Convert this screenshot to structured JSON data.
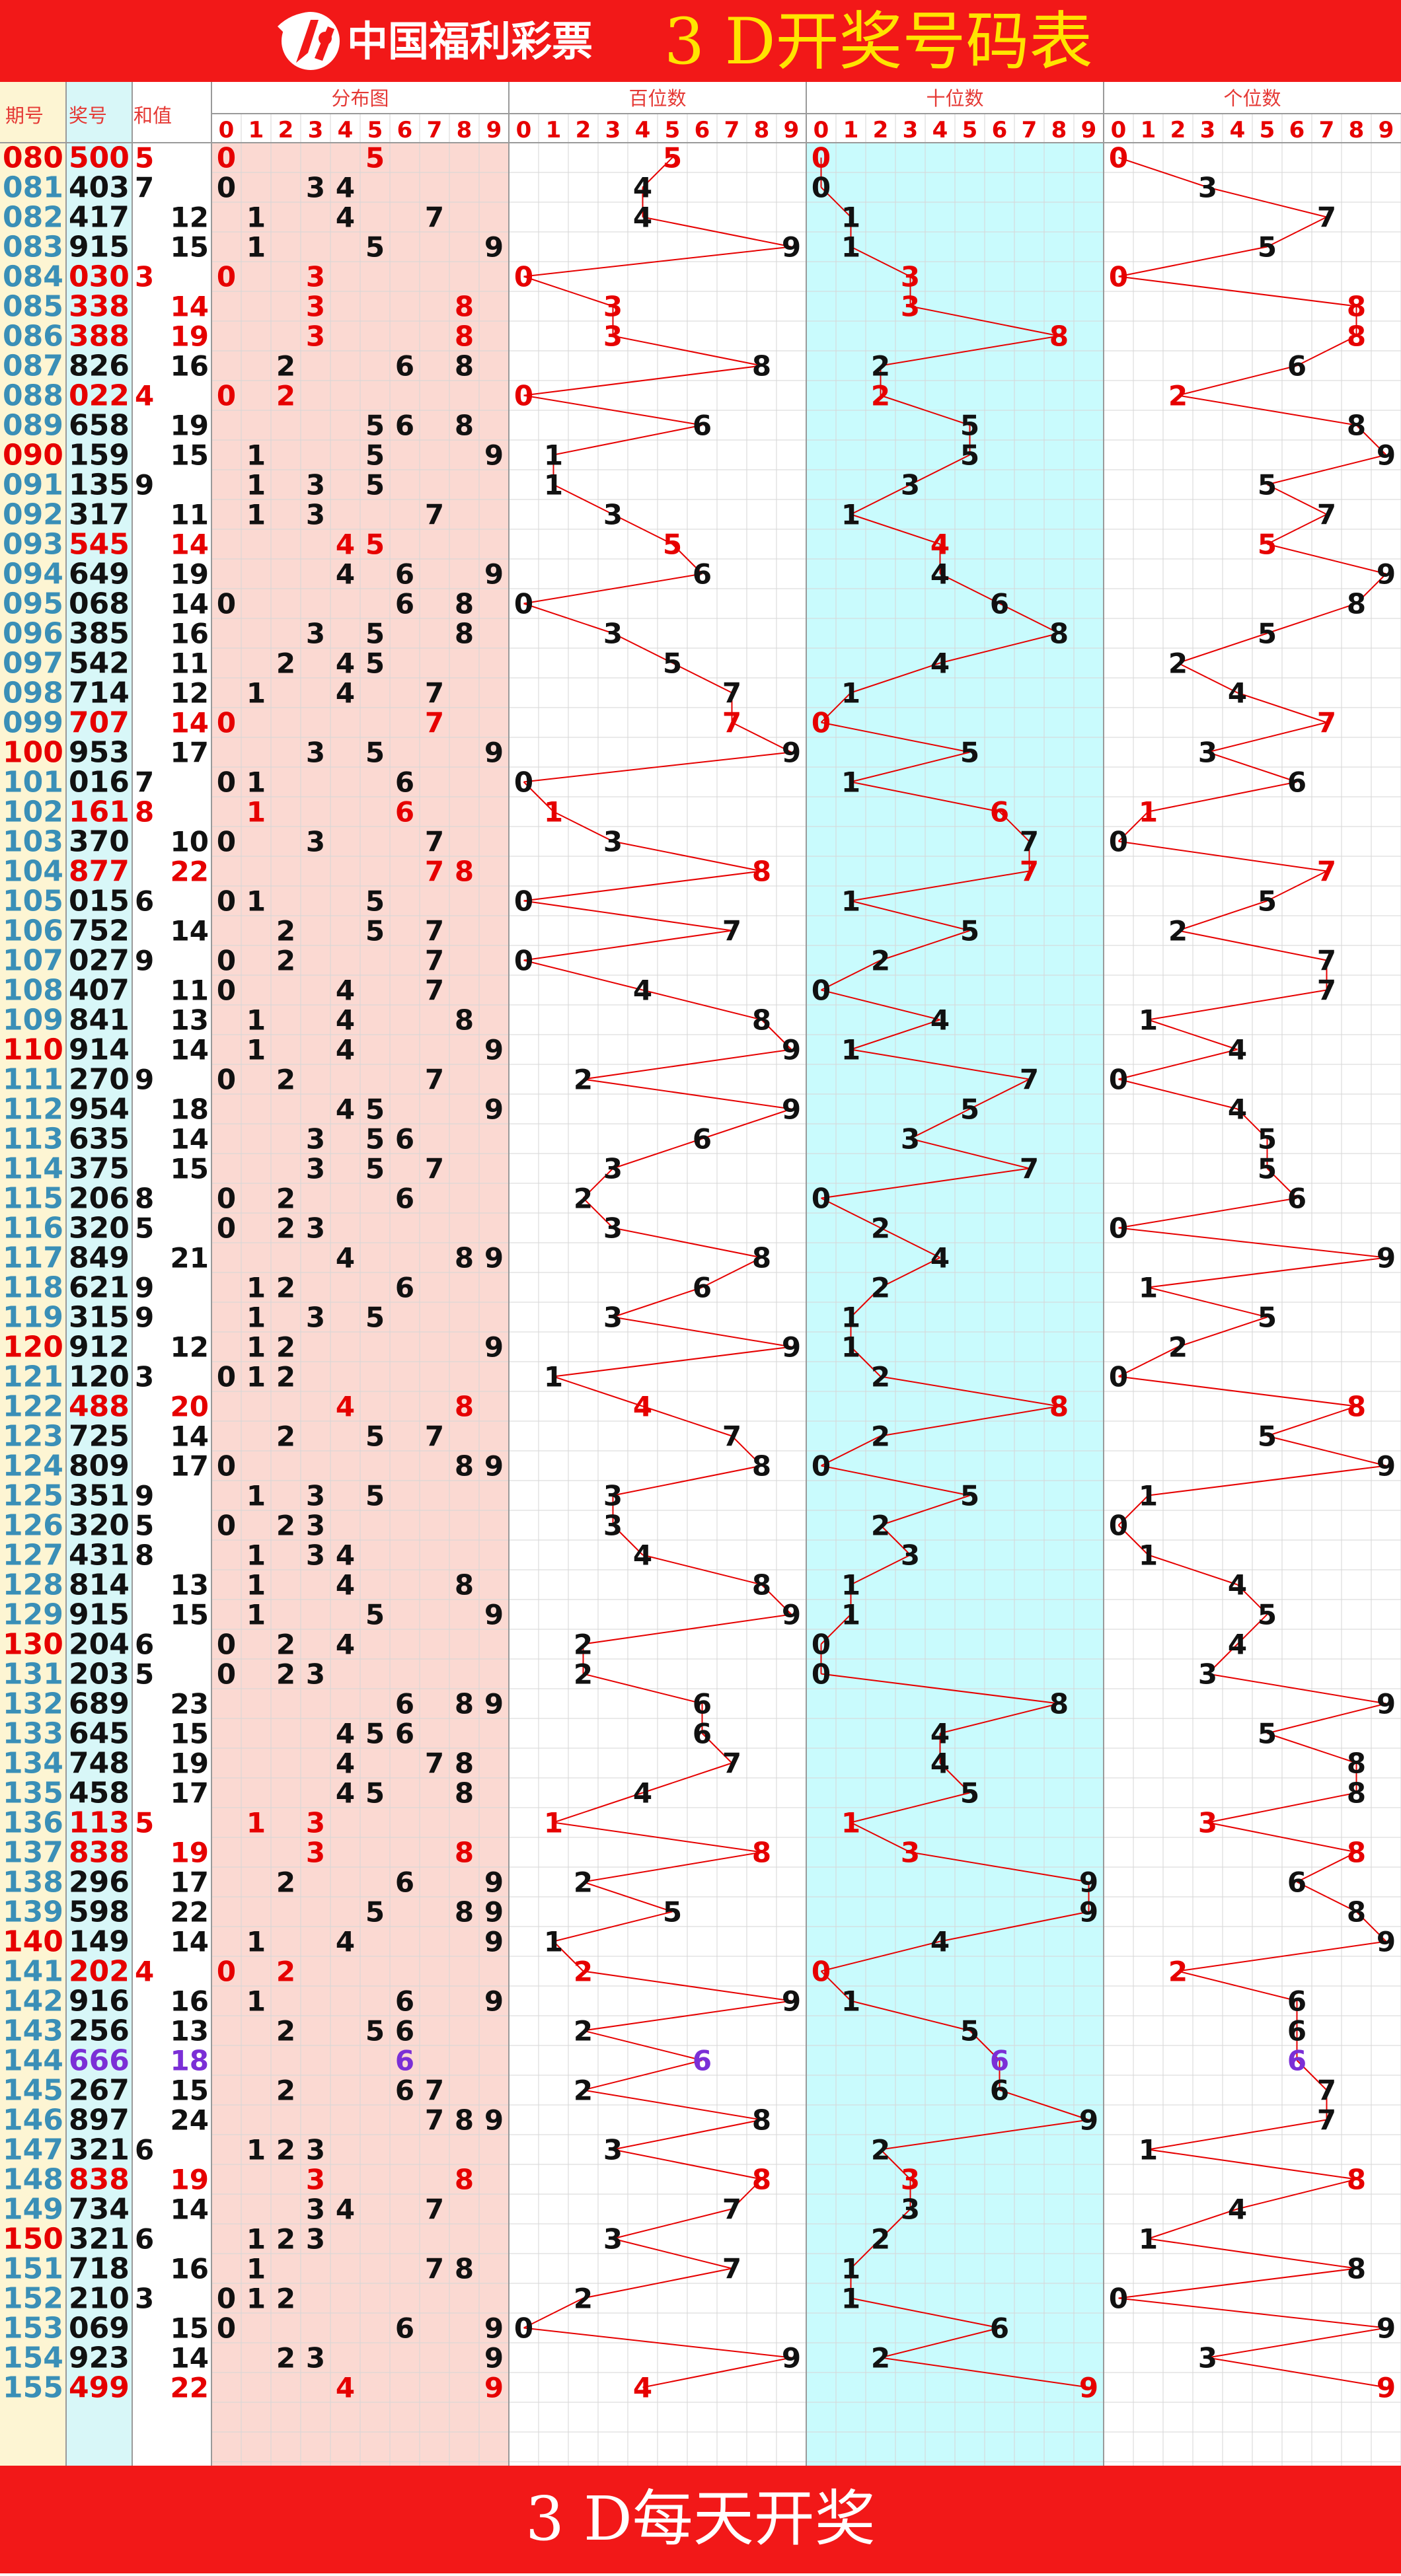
{
  "header": {
    "brand": "中国福利彩票",
    "title": "3 D开奖号码表"
  },
  "footer": {
    "text": "3 D每天开奖"
  },
  "colors": {
    "banner": "#f21818",
    "title_yellow": "#ffe400",
    "period_column_bg": "#fdf5d3",
    "prize_column_bg": "#d8f7f8",
    "distribution_bg": "#fbd9d2",
    "tens_bg": "#c9fbfd",
    "trend_line": "#e60000",
    "highlight_red": "#e60000",
    "triple_purple": "#7b2fd6",
    "normal_digit": "#111111",
    "period_blue": "#3a8fb7"
  },
  "chart_data": {
    "type": "table",
    "columns": {
      "period": "期号",
      "prize": "奖号",
      "sum": "和值",
      "distribution": "分布图",
      "hundreds": "百位数",
      "tens": "十位数",
      "units": "个位数"
    },
    "digit_labels": [
      "0",
      "1",
      "2",
      "3",
      "4",
      "5",
      "6",
      "7",
      "8",
      "9"
    ],
    "periods": [
      "080",
      "081",
      "082",
      "083",
      "084",
      "085",
      "086",
      "087",
      "088",
      "089",
      "090",
      "091",
      "092",
      "093",
      "094",
      "095",
      "096",
      "097",
      "098",
      "099",
      "100",
      "101",
      "102",
      "103",
      "104",
      "105",
      "106",
      "107",
      "108",
      "109",
      "110",
      "111",
      "112",
      "113",
      "114",
      "115",
      "116",
      "117",
      "118",
      "119",
      "120",
      "121",
      "122",
      "123",
      "124",
      "125",
      "126",
      "127",
      "128",
      "129",
      "130",
      "131",
      "132",
      "133",
      "134",
      "135",
      "136",
      "137",
      "138",
      "139",
      "140",
      "141",
      "142",
      "143",
      "144",
      "145",
      "146",
      "147",
      "148",
      "149",
      "150",
      "151",
      "152",
      "153",
      "154",
      "155"
    ],
    "draws": [
      "500",
      "403",
      "417",
      "915",
      "030",
      "338",
      "388",
      "826",
      "022",
      "658",
      "159",
      "135",
      "317",
      "545",
      "649",
      "068",
      "385",
      "542",
      "714",
      "707",
      "953",
      "016",
      "161",
      "370",
      "877",
      "015",
      "752",
      "027",
      "407",
      "841",
      "914",
      "270",
      "954",
      "635",
      "375",
      "206",
      "320",
      "849",
      "621",
      "315",
      "912",
      "120",
      "488",
      "725",
      "809",
      "351",
      "320",
      "431",
      "814",
      "915",
      "204",
      "203",
      "689",
      "645",
      "748",
      "458",
      "113",
      "838",
      "296",
      "598",
      "149",
      "202",
      "916",
      "256",
      "666",
      "267",
      "897",
      "321",
      "838",
      "734",
      "321",
      "718",
      "210",
      "069",
      "923",
      "499"
    ]
  }
}
